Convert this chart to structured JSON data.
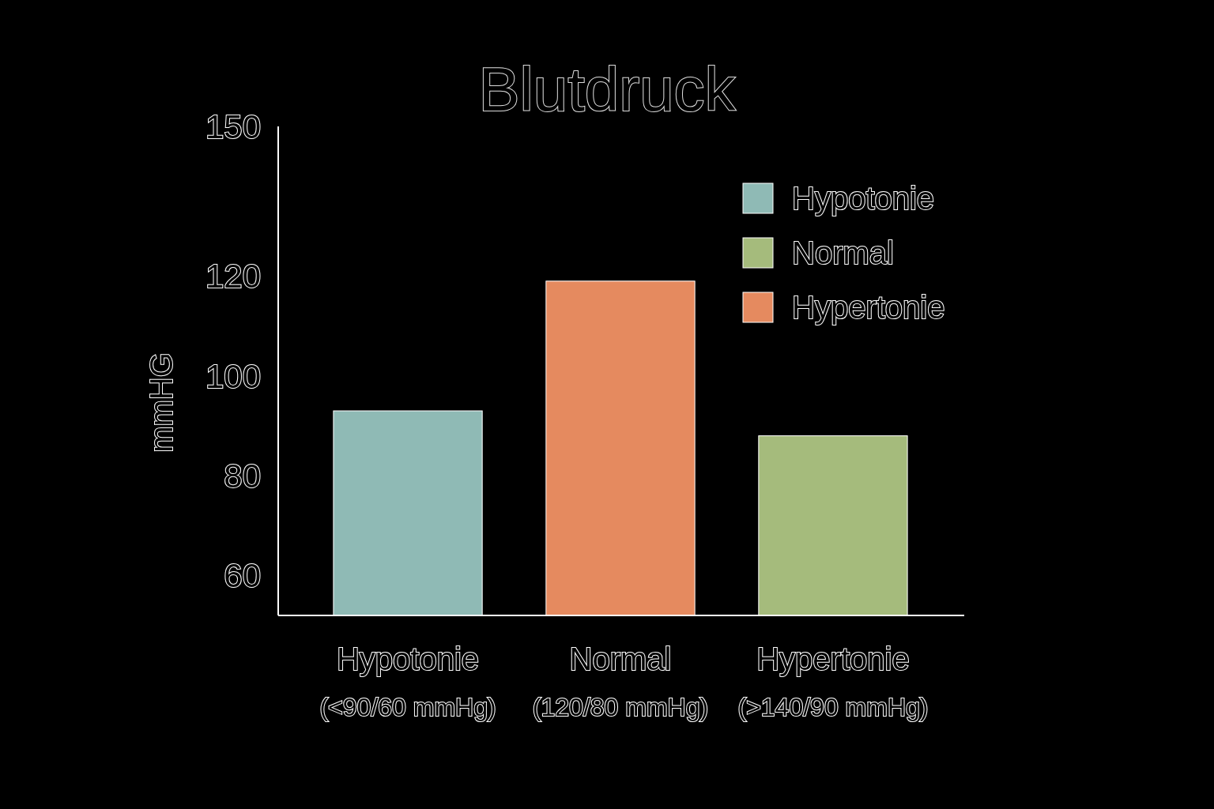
{
  "chart_data": {
    "type": "bar",
    "title": "Blutdruck",
    "ylabel": "mmHG",
    "categories": [
      "Hypotonie\n(<90/60 mmHg)",
      "Normal\n(120/80 mmHg)",
      "Hypertonie\n(>140/90 mmHg)"
    ],
    "series": [
      {
        "name": "Hypotonie",
        "color": "#8fbab5",
        "values": [
          93,
          null,
          null
        ]
      },
      {
        "name": "Normal",
        "color": "#a5bb7c",
        "values": [
          null,
          null,
          88
        ]
      },
      {
        "name": "Hypertonie",
        "color": "#e58a5f",
        "values": [
          null,
          119,
          null
        ]
      }
    ],
    "ylim": [
      52,
      150
    ],
    "yticks": [
      60,
      80,
      100,
      120,
      150
    ],
    "grid": false,
    "legend": "top right"
  }
}
